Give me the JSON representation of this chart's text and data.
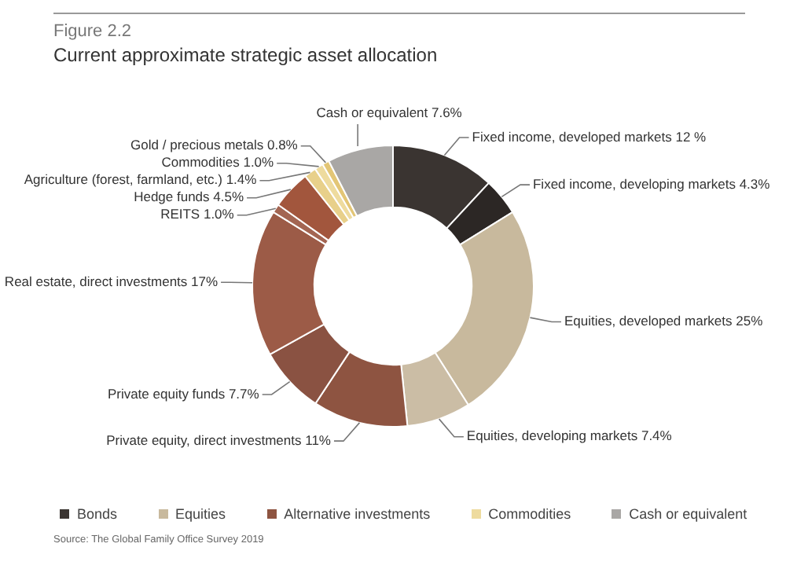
{
  "chart_data": {
    "type": "donut",
    "title": "Figure 2.2",
    "subtitle": "Current approximate strategic asset allocation",
    "categories": [
      "Fixed income, developed markets",
      "Fixed income, developing markets",
      "Equities, developed markets",
      "Equities, developing markets",
      "Private equity, direct investments",
      "Private equity funds",
      "Real estate, direct investments",
      "REITS",
      "Hedge funds",
      "Agriculture (forest, farmland, etc.)",
      "Commodities",
      "Gold / precious metals",
      "Cash or equivalent"
    ],
    "values": [
      12,
      4.3,
      25,
      7.4,
      11,
      7.7,
      17,
      1.0,
      4.5,
      1.4,
      1.0,
      0.8,
      7.6
    ],
    "value_labels": [
      "12 %",
      "4.3%",
      "25%",
      "7.4%",
      "11%",
      "7.7%",
      "17%",
      "1.0%",
      "4.5%",
      "1.4%",
      "1.0%",
      "0.8%",
      "7.6%"
    ],
    "colors": [
      "#3a3431",
      "#2c2725",
      "#c8b99d",
      "#cbbda5",
      "#8e5441",
      "#8a5242",
      "#9c5b47",
      "#a36552",
      "#a2563d",
      "#e8d08a",
      "#eedb9e",
      "#e3c676",
      "#a9a7a5"
    ],
    "legend": "bottom",
    "annotations": [
      "Bonds",
      "Equities",
      "Alternative investments",
      "Commodities",
      "Cash or equivalent",
      "Source: The Global Family Office Survey 2019"
    ]
  }
}
